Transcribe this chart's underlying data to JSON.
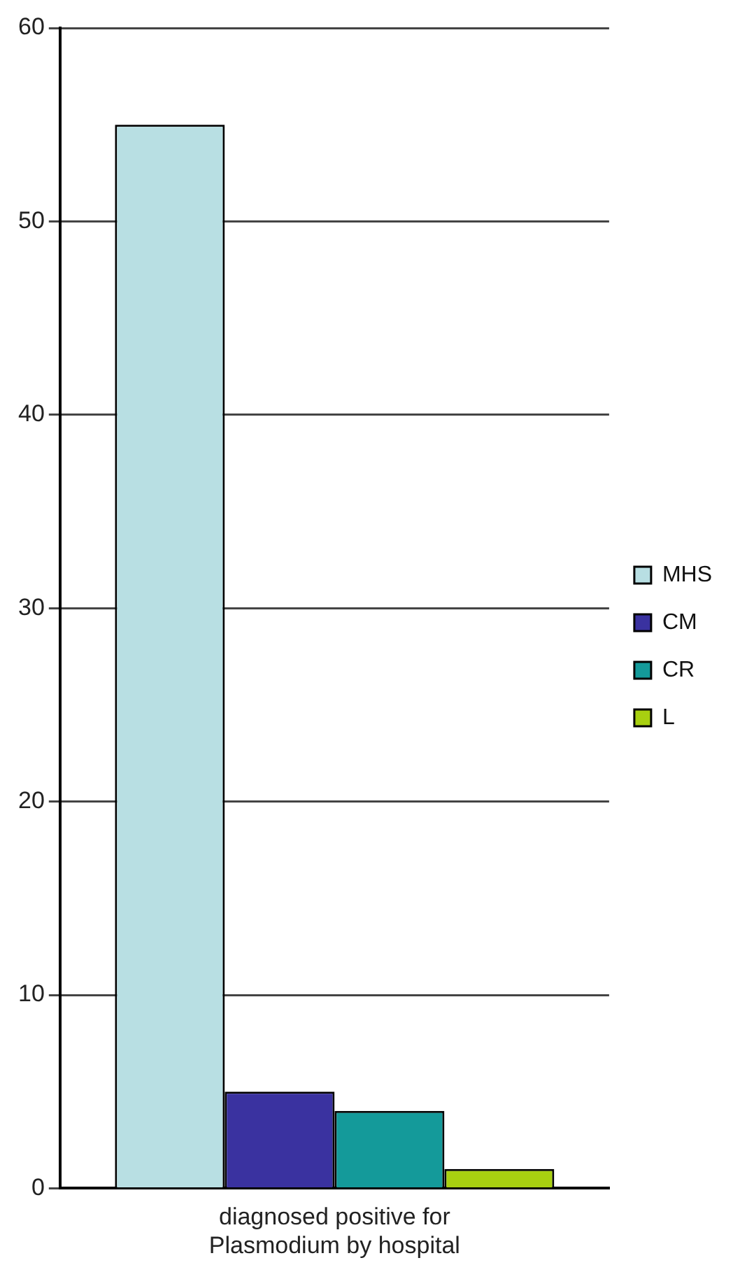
{
  "chart_data": {
    "type": "bar",
    "categories": [
      "diagnosed positive for Plasmodium by hospital"
    ],
    "series": [
      {
        "name": "MHS",
        "color": "#b8dfe3",
        "values": [
          55
        ]
      },
      {
        "name": "CM",
        "color": "#3a32a0",
        "values": [
          5
        ]
      },
      {
        "name": "CR",
        "color": "#149a9a",
        "values": [
          4
        ]
      },
      {
        "name": "L",
        "color": "#a8d010",
        "values": [
          1
        ]
      }
    ],
    "ylim": [
      0,
      60
    ],
    "yticks": [
      0,
      10,
      20,
      30,
      40,
      50,
      60
    ],
    "grid": "y",
    "legend": "right"
  }
}
